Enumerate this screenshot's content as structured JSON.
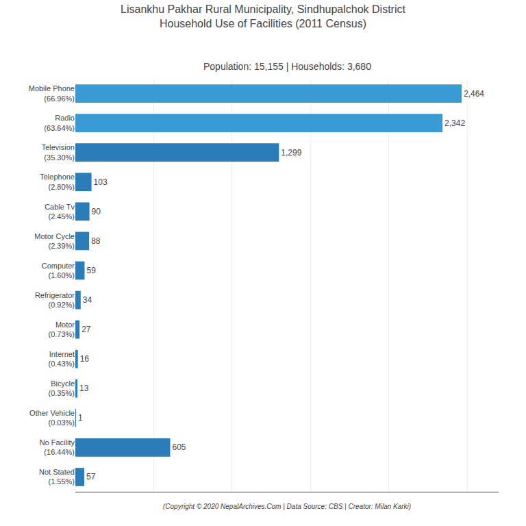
{
  "chart_data": {
    "type": "bar",
    "orientation": "horizontal",
    "title": "Lisankhu Pakhar Rural Municipality, Sindhupalchok District\nHousehold Use of Facilities (2011 Census)",
    "subtitle": "Population: 15,155 | Households: 3,680",
    "annotations": [
      "(Copyright © 2020 NepalArchives.Com | Data Source: CBS | Creator: Milan Karki)"
    ],
    "categories": [
      "Mobile Phone\n(66.96%)",
      "Radio\n(63.64%)",
      "Television\n(35.30%)",
      "Telephone\n(2.80%)",
      "Cable Tv\n(2.45%)",
      "Motor Cycle\n(2.39%)",
      "Computer\n(1.60%)",
      "Refrigerator\n(0.92%)",
      "Motor\n(0.73%)",
      "Internet\n(0.43%)",
      "Bicycle\n(0.35%)",
      "Other Vehicle\n(0.03%)",
      "No Facility\n(16.44%)",
      "Not Stated\n(1.55%)"
    ],
    "values": [
      2464,
      2342,
      1299,
      103,
      90,
      88,
      59,
      34,
      27,
      16,
      13,
      1,
      605,
      57
    ],
    "value_labels": [
      "2,464",
      "2,342",
      "1,299",
      "103",
      "90",
      "88",
      "59",
      "34",
      "27",
      "16",
      "13",
      "1",
      "605",
      "57"
    ],
    "data_labels": true,
    "colors": [
      "#3a9ad4",
      "#3a9ad4",
      "#2b7cb8",
      "#2b7cb8",
      "#2b7cb8",
      "#2b7cb8",
      "#2b7cb8",
      "#2b7cb8",
      "#2b7cb8",
      "#2b7cb8",
      "#2b7cb8",
      "#2b7cb8",
      "#2b7cb8",
      "#2b7cb8"
    ],
    "xlim": [
      0,
      2700
    ],
    "xticks": [
      0,
      500,
      1000,
      1500,
      2000,
      2500
    ],
    "grid": true,
    "tick_labels": "y"
  }
}
